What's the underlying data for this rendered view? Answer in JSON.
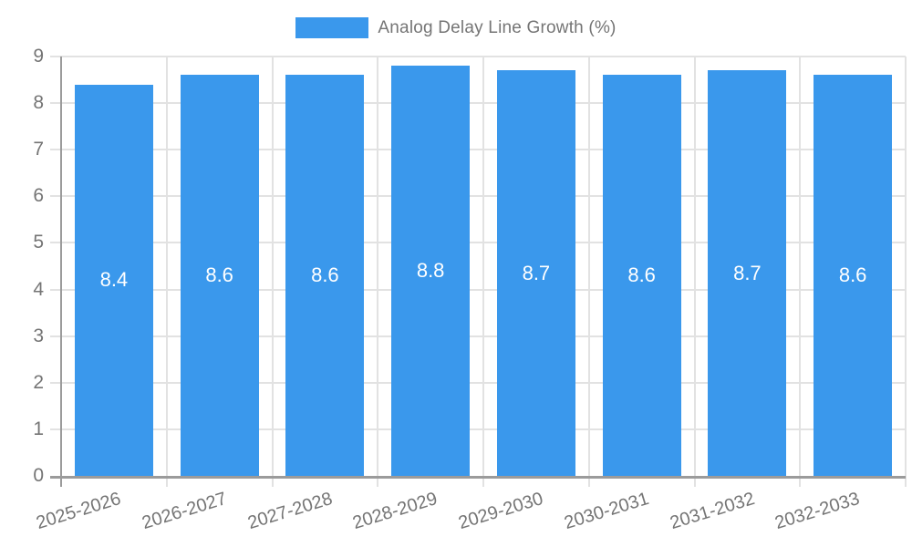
{
  "legend": {
    "label": "Analog Delay Line Growth (%)"
  },
  "colors": {
    "bar": "#3A98EC",
    "axis": "#9B9B9B",
    "grid": "#E2E2E2",
    "text": "#757575",
    "value_label": "#FFFFFF",
    "background": "#FFFFFF"
  },
  "chart_data": {
    "type": "bar",
    "title": "",
    "categories": [
      "2025-2026",
      "2026-2027",
      "2027-2028",
      "2028-2029",
      "2029-2030",
      "2030-2031",
      "2031-2032",
      "2032-2033"
    ],
    "series": [
      {
        "name": "Analog Delay Line Growth (%)",
        "values": [
          8.4,
          8.6,
          8.6,
          8.8,
          8.7,
          8.6,
          8.7,
          8.6
        ]
      }
    ],
    "value_labels": [
      "8.4",
      "8.6",
      "8.6",
      "8.8",
      "8.7",
      "8.6",
      "8.7",
      "8.6"
    ],
    "xlabel": "",
    "ylabel": "",
    "ylim": [
      0,
      9
    ],
    "yticks": [
      0,
      1,
      2,
      3,
      4,
      5,
      6,
      7,
      8,
      9
    ],
    "grid": true,
    "legend_position": "top",
    "bar_labels_inside": true
  }
}
